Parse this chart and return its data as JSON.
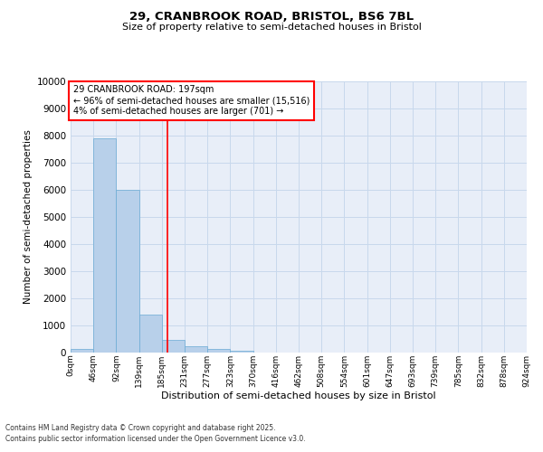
{
  "title_line1": "29, CRANBROOK ROAD, BRISTOL, BS6 7BL",
  "title_line2": "Size of property relative to semi-detached houses in Bristol",
  "xlabel": "Distribution of semi-detached houses by size in Bristol",
  "ylabel": "Number of semi-detached properties",
  "bar_values": [
    150,
    7900,
    6000,
    1400,
    480,
    220,
    140,
    60,
    10,
    0,
    0,
    0,
    0,
    0,
    0,
    0,
    0,
    0,
    0,
    0
  ],
  "bin_labels": [
    "0sqm",
    "46sqm",
    "92sqm",
    "139sqm",
    "185sqm",
    "231sqm",
    "277sqm",
    "323sqm",
    "370sqm",
    "416sqm",
    "462sqm",
    "508sqm",
    "554sqm",
    "601sqm",
    "647sqm",
    "693sqm",
    "739sqm",
    "785sqm",
    "832sqm",
    "878sqm",
    "924sqm"
  ],
  "bar_color": "#b8d0ea",
  "bar_edge_color": "#6aaad4",
  "vline_color": "red",
  "ylim": [
    0,
    10000
  ],
  "yticks": [
    0,
    1000,
    2000,
    3000,
    4000,
    5000,
    6000,
    7000,
    8000,
    9000,
    10000
  ],
  "annotation_title": "29 CRANBROOK ROAD: 197sqm",
  "annotation_line1": "← 96% of semi-detached houses are smaller (15,516)",
  "annotation_line2": "4% of semi-detached houses are larger (701) →",
  "grid_color": "#c8d8ec",
  "bg_color": "#e8eef8",
  "footer_line1": "Contains HM Land Registry data © Crown copyright and database right 2025.",
  "footer_line2": "Contains public sector information licensed under the Open Government Licence v3.0."
}
